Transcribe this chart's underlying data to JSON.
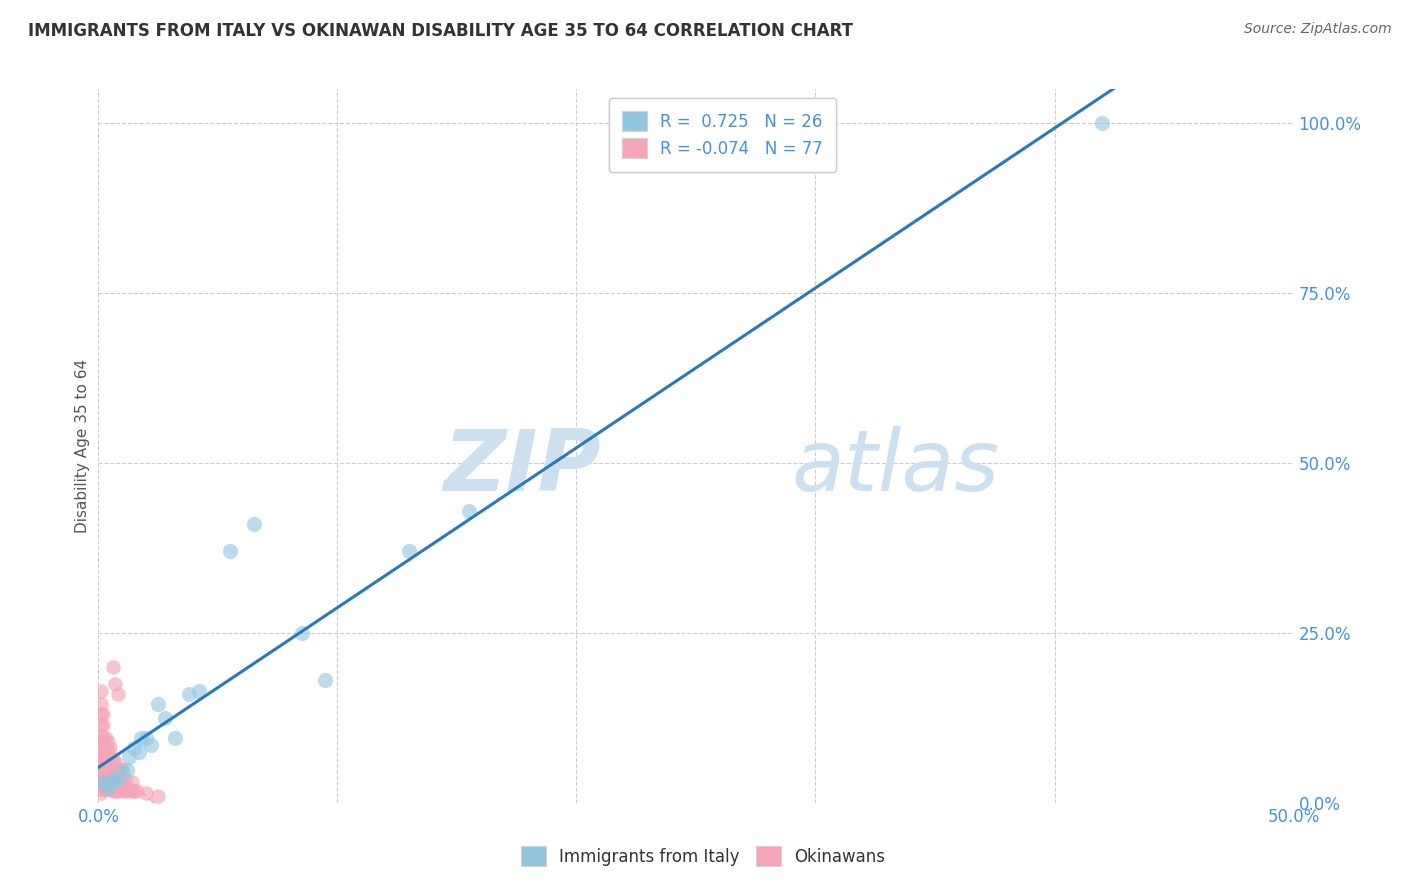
{
  "title": "IMMIGRANTS FROM ITALY VS OKINAWAN DISABILITY AGE 35 TO 64 CORRELATION CHART",
  "source": "Source: ZipAtlas.com",
  "ylabel_text": "Disability Age 35 to 64",
  "x_min": 0.0,
  "x_max": 0.5,
  "y_min": 0.0,
  "y_max": 1.05,
  "x_tick_left_label": "0.0%",
  "x_tick_right_label": "50.0%",
  "y_ticks": [
    0.0,
    0.25,
    0.5,
    0.75,
    1.0
  ],
  "y_tick_labels": [
    "0.0%",
    "25.0%",
    "50.0%",
    "75.0%",
    "100.0%"
  ],
  "italy_color": "#92c5de",
  "okinawa_color": "#f4a6b8",
  "italy_R": 0.725,
  "italy_N": 26,
  "okinawa_R": -0.074,
  "okinawa_N": 77,
  "italy_line_color": "#2979b9",
  "okinawa_line_color": "#f4a6b8",
  "watermark_zip": "ZIP",
  "watermark_atlas": "atlas",
  "watermark_color": "#cce0f0",
  "italy_scatter_x": [
    0.002,
    0.003,
    0.004,
    0.006,
    0.007,
    0.008,
    0.01,
    0.012,
    0.013,
    0.015,
    0.017,
    0.018,
    0.02,
    0.022,
    0.025,
    0.028,
    0.032,
    0.038,
    0.042,
    0.055,
    0.065,
    0.085,
    0.095,
    0.13,
    0.155,
    0.42
  ],
  "italy_scatter_y": [
    0.03,
    0.028,
    0.022,
    0.03,
    0.038,
    0.035,
    0.045,
    0.048,
    0.068,
    0.08,
    0.075,
    0.095,
    0.095,
    0.085,
    0.145,
    0.125,
    0.095,
    0.16,
    0.165,
    0.37,
    0.41,
    0.25,
    0.18,
    0.37,
    0.43,
    1.0
  ],
  "okinawa_scatter_x": [
    0.001,
    0.001,
    0.001,
    0.001,
    0.001,
    0.001,
    0.001,
    0.001,
    0.001,
    0.001,
    0.001,
    0.001,
    0.001,
    0.001,
    0.001,
    0.001,
    0.001,
    0.002,
    0.002,
    0.002,
    0.002,
    0.002,
    0.002,
    0.002,
    0.002,
    0.002,
    0.002,
    0.003,
    0.003,
    0.003,
    0.003,
    0.003,
    0.003,
    0.003,
    0.004,
    0.004,
    0.004,
    0.004,
    0.004,
    0.004,
    0.004,
    0.005,
    0.005,
    0.005,
    0.005,
    0.005,
    0.005,
    0.006,
    0.006,
    0.006,
    0.006,
    0.006,
    0.007,
    0.007,
    0.007,
    0.007,
    0.008,
    0.008,
    0.008,
    0.009,
    0.009,
    0.01,
    0.01,
    0.01,
    0.011,
    0.011,
    0.012,
    0.013,
    0.014,
    0.014,
    0.015,
    0.016,
    0.02,
    0.025,
    0.006,
    0.007,
    0.008
  ],
  "okinawa_scatter_y": [
    0.015,
    0.02,
    0.025,
    0.03,
    0.035,
    0.04,
    0.045,
    0.05,
    0.06,
    0.07,
    0.08,
    0.09,
    0.1,
    0.115,
    0.13,
    0.145,
    0.165,
    0.02,
    0.025,
    0.035,
    0.04,
    0.055,
    0.065,
    0.08,
    0.095,
    0.115,
    0.13,
    0.02,
    0.025,
    0.035,
    0.045,
    0.06,
    0.08,
    0.095,
    0.02,
    0.025,
    0.035,
    0.048,
    0.06,
    0.075,
    0.09,
    0.02,
    0.025,
    0.035,
    0.05,
    0.065,
    0.08,
    0.018,
    0.025,
    0.035,
    0.05,
    0.065,
    0.018,
    0.025,
    0.04,
    0.06,
    0.018,
    0.03,
    0.05,
    0.02,
    0.035,
    0.018,
    0.03,
    0.05,
    0.02,
    0.035,
    0.018,
    0.02,
    0.018,
    0.03,
    0.018,
    0.018,
    0.015,
    0.01,
    0.2,
    0.175,
    0.16
  ]
}
